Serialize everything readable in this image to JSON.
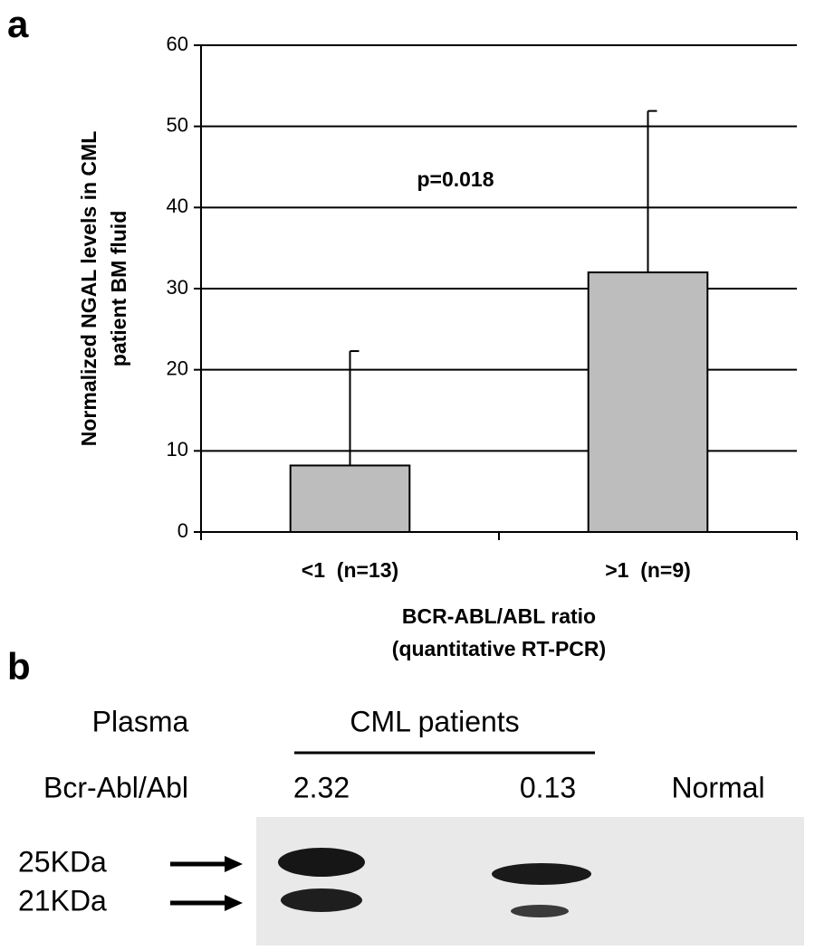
{
  "chart_data": {
    "type": "bar",
    "panel_label": "a",
    "ylabel": [
      "Normalized NGAL levels in CML",
      "patient BM fluid"
    ],
    "xlabel": [
      "BCR-ABL/ABL ratio",
      "(quantitative RT-PCR)"
    ],
    "annotation": "p=0.018",
    "categories": [
      "<1  (n=13)",
      ">1  (n=9)"
    ],
    "values": [
      8.2,
      32
    ],
    "errors": [
      14.1,
      19.9
    ],
    "color": "#bdbdbd",
    "ylim": [
      0,
      60
    ],
    "yticks": [
      0,
      10,
      20,
      30,
      40,
      50,
      60
    ],
    "grid": true
  },
  "blot": {
    "panel_label": "b",
    "sample": "Plasma",
    "group": "CML patients",
    "row_label": "Bcr-Abl/Abl",
    "lanes": [
      "2.32",
      "0.13",
      "Normal"
    ],
    "markers": [
      "25KDa",
      "21KDa"
    ]
  }
}
